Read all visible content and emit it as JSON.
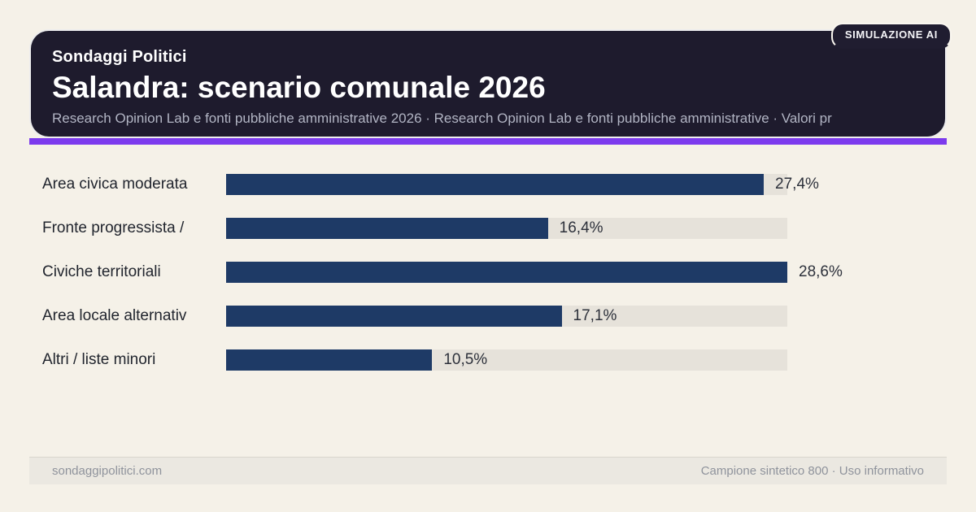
{
  "page": {
    "background_color": "#f5f1e8"
  },
  "header": {
    "eyebrow": "Sondaggi Politici",
    "title": "Salandra: scenario comunale 2026",
    "subtitle": "Research Opinion Lab e fonti pubbliche amministrative 2026 · Research Opinion Lab e fonti pubbliche amministrative · Valori pr",
    "badge": "SIMULAZIONE AI",
    "background_color": "#1e1b2d",
    "accent_bar_color": "#7c3aed"
  },
  "chart_data": {
    "type": "bar",
    "orientation": "horizontal",
    "categories": [
      "Area civica moderata",
      "Fronte progressista /",
      "Civiche territoriali",
      "Area locale alternativ",
      "Altri / liste minori"
    ],
    "values": [
      27.4,
      16.4,
      28.6,
      17.1,
      10.5
    ],
    "value_labels": [
      "27,4%",
      "16,4%",
      "28,6%",
      "17,1%",
      "10,5%"
    ],
    "max_value": 28.6,
    "value_suffix": "%",
    "bar_color": "#1e3a66",
    "track_color": "#e6e2da",
    "grid": false,
    "legend": false
  },
  "footer": {
    "left": "sondaggipolitici.com",
    "right": "Campione sintetico 800 · Uso informativo"
  }
}
